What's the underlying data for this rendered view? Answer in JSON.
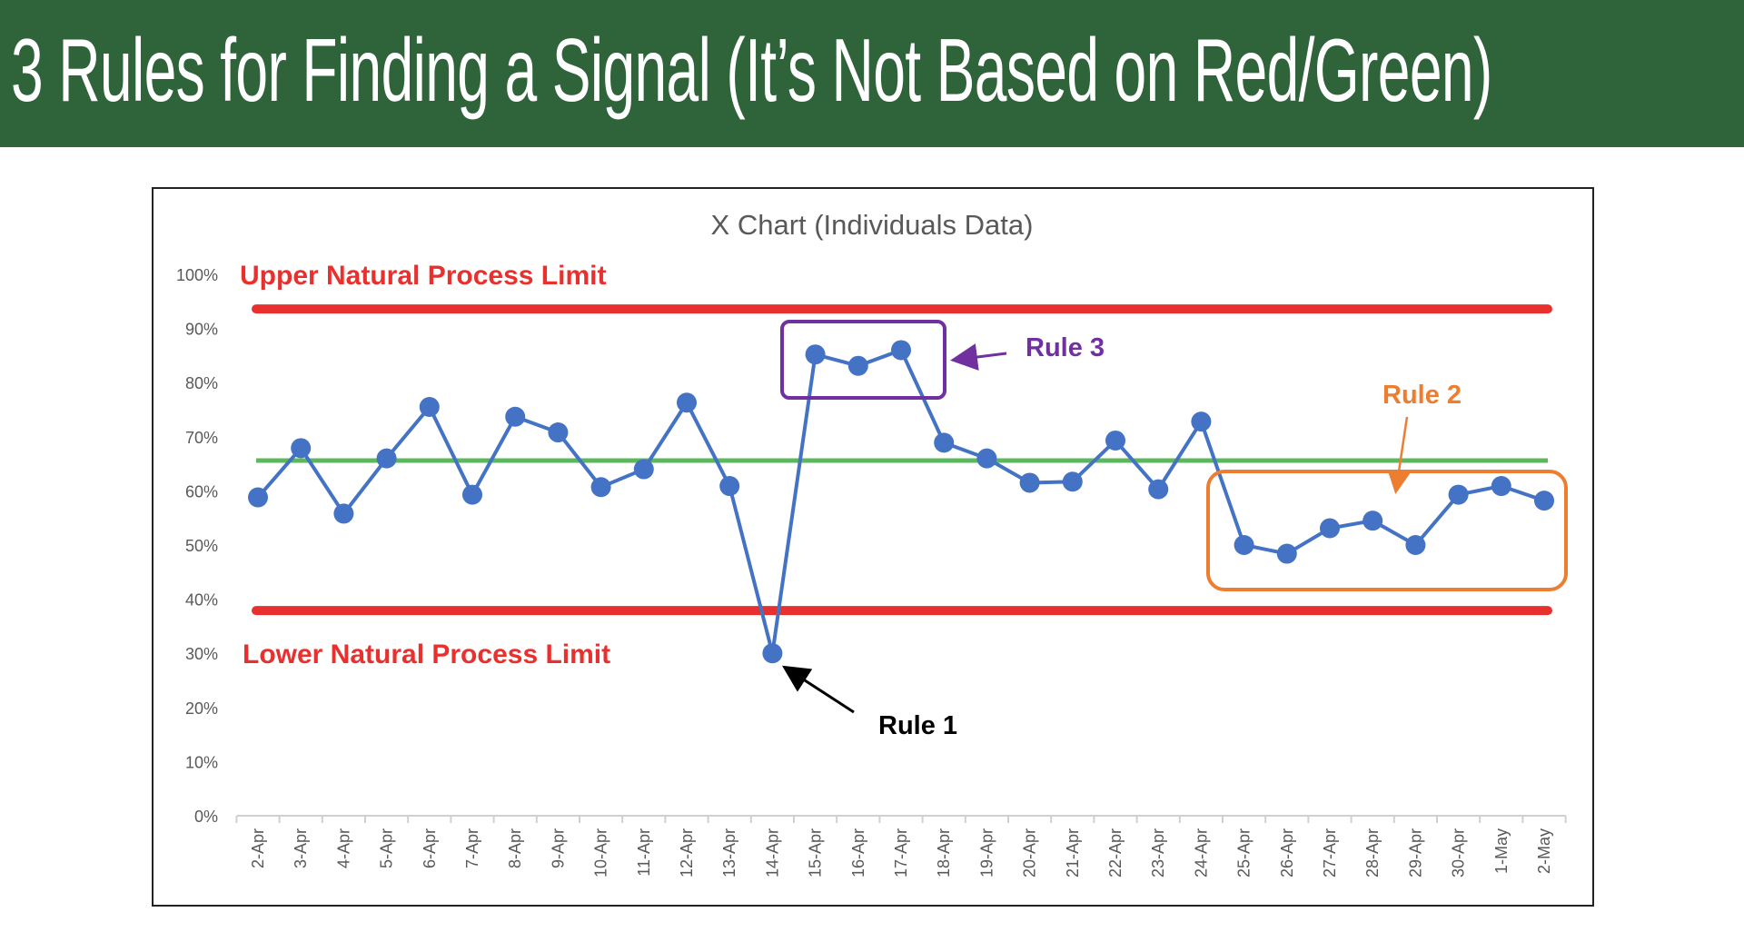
{
  "header": {
    "title": "3 Rules for Finding a Signal (It’s Not Based on Red/Green)"
  },
  "chart_data": {
    "type": "line",
    "title": "X Chart (Individuals Data)",
    "xlabel": "",
    "ylabel": "",
    "ylim": [
      0,
      100
    ],
    "y_ticks": [
      "0%",
      "10%",
      "20%",
      "30%",
      "40%",
      "50%",
      "60%",
      "70%",
      "80%",
      "90%",
      "100%"
    ],
    "categories": [
      "2-Apr",
      "3-Apr",
      "4-Apr",
      "5-Apr",
      "6-Apr",
      "7-Apr",
      "8-Apr",
      "9-Apr",
      "10-Apr",
      "11-Apr",
      "12-Apr",
      "13-Apr",
      "14-Apr",
      "15-Apr",
      "16-Apr",
      "17-Apr",
      "18-Apr",
      "19-Apr",
      "20-Apr",
      "21-Apr",
      "22-Apr",
      "23-Apr",
      "24-Apr",
      "25-Apr",
      "26-Apr",
      "27-Apr",
      "28-Apr",
      "29-Apr",
      "30-Apr",
      "1-May",
      "2-May"
    ],
    "series": [
      {
        "name": "Individuals",
        "color": "#4472c4",
        "values": [
          58.8,
          67.9,
          55.8,
          66.0,
          75.5,
          59.3,
          73.7,
          70.8,
          60.7,
          64.0,
          76.3,
          60.9,
          30.0,
          85.2,
          83.1,
          86.0,
          68.9,
          66.0,
          61.5,
          61.7,
          69.3,
          60.3,
          72.8,
          50.0,
          48.4,
          53.1,
          54.5,
          50.0,
          59.3,
          60.9,
          58.2
        ]
      }
    ],
    "limits": {
      "upper": {
        "label": "Upper Natural Process Limit",
        "value": 93.6,
        "color": "#e8312f"
      },
      "lower": {
        "label": "Lower Natural Process Limit",
        "value": 37.9,
        "color": "#e8312f"
      },
      "mean": {
        "value": 65.6,
        "color": "#5cb85c"
      }
    },
    "annotations": [
      {
        "label": "Rule 1",
        "color": "#000000",
        "points": [
          "14-Apr"
        ]
      },
      {
        "label": "Rule 2",
        "color": "#ed7d31",
        "points": [
          "25-Apr",
          "2-May"
        ]
      },
      {
        "label": "Rule 3",
        "color": "#7030a0",
        "points": [
          "15-Apr",
          "17-Apr"
        ]
      }
    ],
    "grid": false,
    "legend": "none"
  }
}
